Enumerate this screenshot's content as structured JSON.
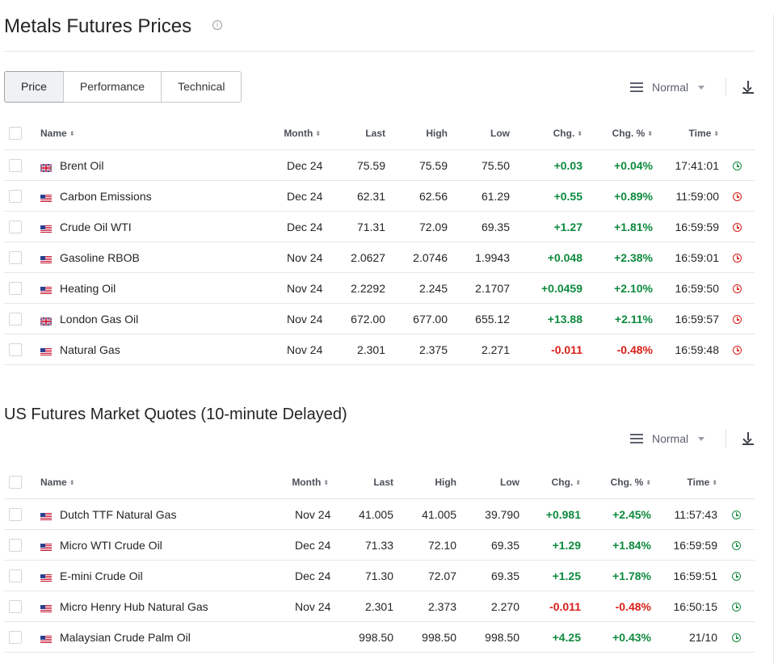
{
  "page_title": "Metals Futures Prices",
  "tabs": [
    "Price",
    "Performance",
    "Technical"
  ],
  "view_select": "Normal",
  "table1": {
    "headers": {
      "name": "Name",
      "month": "Month",
      "last": "Last",
      "high": "High",
      "low": "Low",
      "chg": "Chg.",
      "chgpct": "Chg. %",
      "time": "Time"
    },
    "rows": [
      {
        "flag": "uk",
        "name": "Brent Oil",
        "month": "Dec 24",
        "last": "75.59",
        "high": "75.59",
        "low": "75.50",
        "chg": "+0.03",
        "chgpct": "+0.04%",
        "time": "17:41:01",
        "dir": "pos",
        "status": "open"
      },
      {
        "flag": "us",
        "name": "Carbon Emissions",
        "month": "Dec 24",
        "last": "62.31",
        "high": "62.56",
        "low": "61.29",
        "chg": "+0.55",
        "chgpct": "+0.89%",
        "time": "11:59:00",
        "dir": "pos",
        "status": "closed"
      },
      {
        "flag": "us",
        "name": "Crude Oil WTI",
        "month": "Dec 24",
        "last": "71.31",
        "high": "72.09",
        "low": "69.35",
        "chg": "+1.27",
        "chgpct": "+1.81%",
        "time": "16:59:59",
        "dir": "pos",
        "status": "closed"
      },
      {
        "flag": "us",
        "name": "Gasoline RBOB",
        "month": "Nov 24",
        "last": "2.0627",
        "high": "2.0746",
        "low": "1.9943",
        "chg": "+0.048",
        "chgpct": "+2.38%",
        "time": "16:59:01",
        "dir": "pos",
        "status": "closed"
      },
      {
        "flag": "us",
        "name": "Heating Oil",
        "month": "Nov 24",
        "last": "2.2292",
        "high": "2.245",
        "low": "2.1707",
        "chg": "+0.0459",
        "chgpct": "+2.10%",
        "time": "16:59:50",
        "dir": "pos",
        "status": "closed"
      },
      {
        "flag": "uk",
        "name": "London Gas Oil",
        "month": "Nov 24",
        "last": "672.00",
        "high": "677.00",
        "low": "655.12",
        "chg": "+13.88",
        "chgpct": "+2.11%",
        "time": "16:59:57",
        "dir": "pos",
        "status": "closed"
      },
      {
        "flag": "us",
        "name": "Natural Gas",
        "month": "Nov 24",
        "last": "2.301",
        "high": "2.375",
        "low": "2.271",
        "chg": "-0.011",
        "chgpct": "-0.48%",
        "time": "16:59:48",
        "dir": "neg",
        "status": "closed"
      }
    ]
  },
  "section2_title": "US Futures Market Quotes (10-minute Delayed)",
  "table2": {
    "headers": {
      "name": "Name",
      "month": "Month",
      "last": "Last",
      "high": "High",
      "low": "Low",
      "chg": "Chg.",
      "chgpct": "Chg. %",
      "time": "Time"
    },
    "rows": [
      {
        "flag": "us",
        "name": "Dutch TTF Natural Gas",
        "month": "Nov 24",
        "last": "41.005",
        "high": "41.005",
        "low": "39.790",
        "chg": "+0.981",
        "chgpct": "+2.45%",
        "time": "11:57:43",
        "dir": "pos",
        "status": "open"
      },
      {
        "flag": "us",
        "name": "Micro WTI Crude Oil",
        "month": "Dec 24",
        "last": "71.33",
        "high": "72.10",
        "low": "69.35",
        "chg": "+1.29",
        "chgpct": "+1.84%",
        "time": "16:59:59",
        "dir": "pos",
        "status": "open"
      },
      {
        "flag": "us",
        "name": "E-mini Crude Oil",
        "month": "Dec 24",
        "last": "71.30",
        "high": "72.07",
        "low": "69.35",
        "chg": "+1.25",
        "chgpct": "+1.78%",
        "time": "16:59:51",
        "dir": "pos",
        "status": "open"
      },
      {
        "flag": "us",
        "name": "Micro Henry Hub Natural Gas",
        "month": "Nov 24",
        "last": "2.301",
        "high": "2.373",
        "low": "2.270",
        "chg": "-0.011",
        "chgpct": "-0.48%",
        "time": "16:50:15",
        "dir": "neg",
        "status": "open"
      },
      {
        "flag": "us",
        "name": "Malaysian Crude Palm Oil",
        "month": "",
        "last": "998.50",
        "high": "998.50",
        "low": "998.50",
        "chg": "+4.25",
        "chgpct": "+0.43%",
        "time": "21/10",
        "dir": "pos",
        "status": "open"
      }
    ]
  },
  "colors": {
    "positive": "#0e8a3e",
    "negative": "#d91e18",
    "text": "#232526"
  },
  "icons": {
    "info": "info-icon",
    "menu": "menu-icon",
    "caret": "caret-down-icon",
    "download": "download-icon",
    "sort": "sort-icon",
    "clock": "clock-icon",
    "flag_uk": "uk-flag-icon",
    "flag_us": "us-flag-icon"
  }
}
